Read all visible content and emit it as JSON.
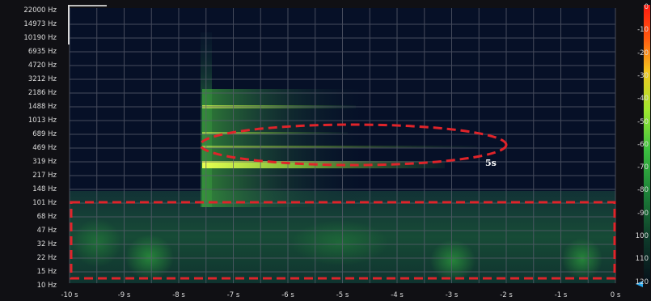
{
  "spectrogram": {
    "frequency_labels": [
      "22000 Hz",
      "14973 Hz",
      "10190 Hz",
      "6935 Hz",
      "4720 Hz",
      "3212 Hz",
      "2186 Hz",
      "1488 Hz",
      "1013 Hz",
      "689 Hz",
      "469 Hz",
      "319 Hz",
      "217 Hz",
      "148 Hz",
      "101 Hz",
      "68 Hz",
      "47 Hz",
      "32 Hz",
      "22 Hz",
      "15 Hz",
      "10 Hz"
    ],
    "time_labels": [
      "-10 s",
      "-9 s",
      "-8 s",
      "-7 s",
      "-6 s",
      "-5 s",
      "-4 s",
      "-3 s",
      "-2 s",
      "-1 s",
      "0 s"
    ],
    "db_labels": [
      "0",
      "-10",
      "-20",
      "-30",
      "-40",
      "-50",
      "-60",
      "-70",
      "-80",
      "-90",
      "100",
      "110",
      "120"
    ],
    "annotation_text": "5s",
    "colors": {
      "background": "#050a1e",
      "grid": "#5b5f6e",
      "annotation_dash": "#e0242a",
      "spectrum_low": "#1e6a32",
      "spectrum_high": "#e8ff40",
      "level_marker": "#29a8ee"
    }
  }
}
